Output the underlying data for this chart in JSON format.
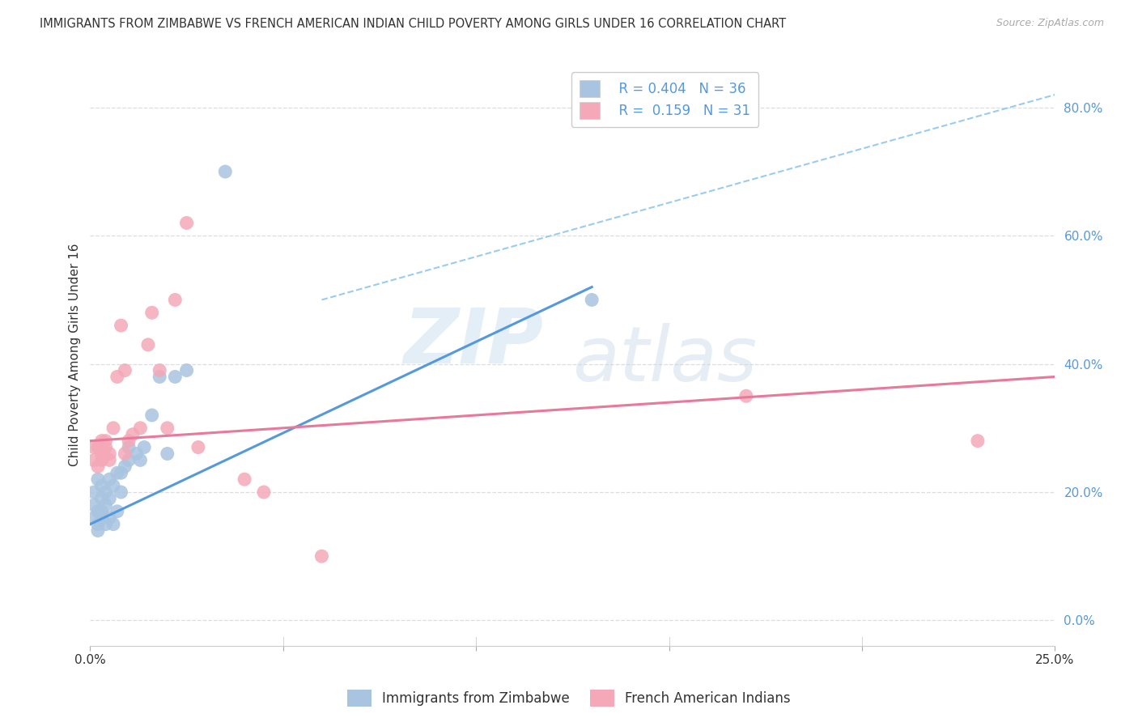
{
  "title": "IMMIGRANTS FROM ZIMBABWE VS FRENCH AMERICAN INDIAN CHILD POVERTY AMONG GIRLS UNDER 16 CORRELATION CHART",
  "source": "Source: ZipAtlas.com",
  "ylabel": "Child Poverty Among Girls Under 16",
  "ytick_labels": [
    "0.0%",
    "20.0%",
    "40.0%",
    "60.0%",
    "80.0%"
  ],
  "ytick_vals": [
    0.0,
    0.2,
    0.4,
    0.6,
    0.8
  ],
  "xmin": 0.0,
  "xmax": 0.25,
  "ymin": -0.04,
  "ymax": 0.87,
  "blue_r": "0.404",
  "blue_n": "36",
  "pink_r": "0.159",
  "pink_n": "31",
  "blue_label": "Immigrants from Zimbabwe",
  "pink_label": "French American Indians",
  "blue_color": "#a8c4e0",
  "pink_color": "#f4a8b8",
  "blue_scatter_x": [
    0.001,
    0.001,
    0.001,
    0.002,
    0.002,
    0.002,
    0.002,
    0.003,
    0.003,
    0.003,
    0.003,
    0.004,
    0.004,
    0.004,
    0.005,
    0.005,
    0.005,
    0.006,
    0.006,
    0.007,
    0.007,
    0.008,
    0.008,
    0.009,
    0.01,
    0.01,
    0.012,
    0.013,
    0.014,
    0.016,
    0.018,
    0.02,
    0.022,
    0.025,
    0.035,
    0.13
  ],
  "blue_scatter_y": [
    0.16,
    0.18,
    0.2,
    0.14,
    0.15,
    0.17,
    0.22,
    0.16,
    0.17,
    0.19,
    0.21,
    0.15,
    0.18,
    0.2,
    0.16,
    0.19,
    0.22,
    0.15,
    0.21,
    0.17,
    0.23,
    0.2,
    0.23,
    0.24,
    0.25,
    0.27,
    0.26,
    0.25,
    0.27,
    0.32,
    0.38,
    0.26,
    0.38,
    0.39,
    0.7,
    0.5
  ],
  "pink_scatter_x": [
    0.001,
    0.001,
    0.002,
    0.002,
    0.003,
    0.003,
    0.003,
    0.004,
    0.004,
    0.005,
    0.005,
    0.006,
    0.007,
    0.008,
    0.009,
    0.009,
    0.01,
    0.011,
    0.013,
    0.015,
    0.016,
    0.018,
    0.02,
    0.022,
    0.025,
    0.028,
    0.04,
    0.045,
    0.06,
    0.17,
    0.23
  ],
  "pink_scatter_y": [
    0.25,
    0.27,
    0.24,
    0.27,
    0.25,
    0.26,
    0.28,
    0.27,
    0.28,
    0.25,
    0.26,
    0.3,
    0.38,
    0.46,
    0.26,
    0.39,
    0.28,
    0.29,
    0.3,
    0.43,
    0.48,
    0.39,
    0.3,
    0.5,
    0.62,
    0.27,
    0.22,
    0.2,
    0.1,
    0.35,
    0.28
  ],
  "blue_line_x": [
    0.0,
    0.13
  ],
  "blue_line_y": [
    0.15,
    0.52
  ],
  "pink_line_x": [
    0.0,
    0.25
  ],
  "pink_line_y": [
    0.28,
    0.38
  ],
  "dashed_line_x": [
    0.06,
    0.25
  ],
  "dashed_line_y": [
    0.5,
    0.82
  ],
  "background_color": "#ffffff",
  "grid_color": "#dddddd",
  "title_fontsize": 10.5,
  "axis_label_fontsize": 11,
  "tick_fontsize": 11,
  "watermark_zip": "ZIP",
  "watermark_atlas": "atlas"
}
